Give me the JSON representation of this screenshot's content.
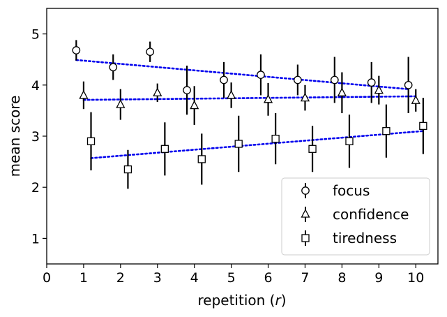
{
  "chart_data": {
    "type": "scatter",
    "xlabel": "repetition",
    "xlabel_var": "r",
    "ylabel": "mean score",
    "xlim": [
      0,
      10.6
    ],
    "ylim": [
      0.5,
      5.5
    ],
    "xticks": [
      "0",
      "1",
      "2",
      "3",
      "4",
      "5",
      "6",
      "7",
      "8",
      "9",
      "10"
    ],
    "yticks": [
      "1",
      "2",
      "3",
      "4",
      "5"
    ],
    "grid": false,
    "legend_position": "bottom-right",
    "trend_line_color": "#0000ee",
    "series": [
      {
        "name": "focus",
        "marker": "circle",
        "x": [
          0.8,
          1.8,
          2.8,
          3.8,
          4.8,
          5.8,
          6.8,
          7.8,
          8.8,
          9.8
        ],
        "y": [
          4.68,
          4.35,
          4.65,
          3.9,
          4.1,
          4.2,
          4.1,
          4.1,
          4.05,
          4.0
        ],
        "err": [
          0.2,
          0.25,
          0.2,
          0.48,
          0.35,
          0.4,
          0.3,
          0.45,
          0.4,
          0.55
        ],
        "trend": [
          4.49,
          3.92
        ]
      },
      {
        "name": "confidence",
        "marker": "triangle",
        "x": [
          1.0,
          2.0,
          3.0,
          4.0,
          5.0,
          6.0,
          7.0,
          8.0,
          9.0,
          10.0
        ],
        "y": [
          3.8,
          3.62,
          3.85,
          3.6,
          3.8,
          3.72,
          3.75,
          3.85,
          3.9,
          3.7
        ],
        "err": [
          0.27,
          0.3,
          0.18,
          0.38,
          0.25,
          0.32,
          0.25,
          0.4,
          0.28,
          0.22
        ],
        "trend": [
          3.71,
          3.78
        ]
      },
      {
        "name": "tiredness",
        "marker": "square",
        "x": [
          1.2,
          2.2,
          3.2,
          4.2,
          5.2,
          6.2,
          7.2,
          8.2,
          9.2,
          10.2
        ],
        "y": [
          2.9,
          2.35,
          2.75,
          2.55,
          2.85,
          2.95,
          2.75,
          2.9,
          3.1,
          3.2
        ],
        "err": [
          0.57,
          0.38,
          0.52,
          0.5,
          0.55,
          0.5,
          0.45,
          0.52,
          0.52,
          0.55
        ],
        "trend": [
          2.57,
          3.1
        ]
      }
    ]
  }
}
